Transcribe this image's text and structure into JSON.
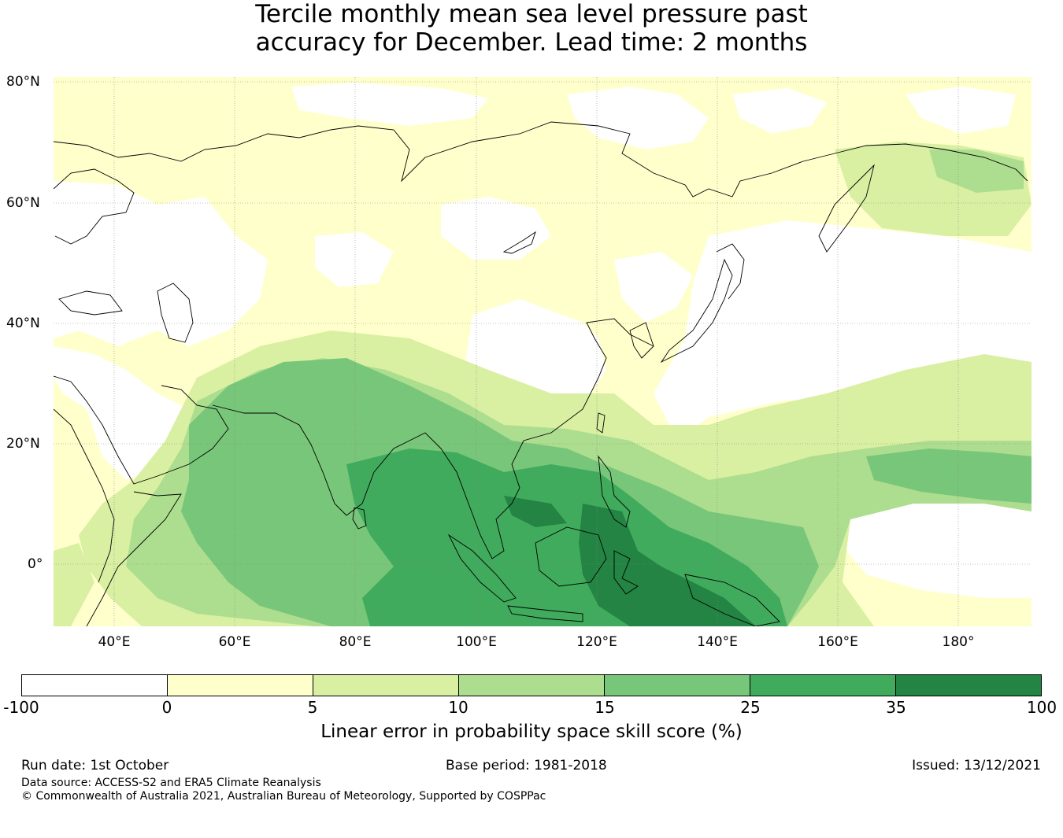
{
  "title_line1": "Tercile monthly mean sea level pressure past",
  "title_line2": "accuracy for December. Lead time: 2 months",
  "map": {
    "lat_labels": [
      "80°N",
      "60°N",
      "40°N",
      "20°N",
      "0°"
    ],
    "lon_labels": [
      "40°E",
      "60°E",
      "80°E",
      "100°E",
      "120°E",
      "140°E",
      "160°E",
      "180°"
    ],
    "lon_range": [
      30,
      192
    ],
    "lat_range": [
      -10,
      80
    ]
  },
  "colorbar": {
    "ticks": [
      "-100",
      "0",
      "5",
      "10",
      "15",
      "25",
      "35",
      "100"
    ],
    "colors": [
      "#ffffff",
      "#ffffcc",
      "#d9f0a3",
      "#addd8e",
      "#78c679",
      "#41ab5d",
      "#238443"
    ],
    "label": "Linear error in probability space skill score (%)"
  },
  "footer": {
    "run_date": "Run date: 1st October",
    "base_period": "Base period: 1981-2018",
    "issued": "Issued: 13/12/2021",
    "data_source": "Data source: ACCESS-S2 and ERA5 Climate Reanalysis",
    "copyright": "© Commonwealth of Australia 2021, Australian Bureau of Meteorology, Supported by COSPPac"
  }
}
